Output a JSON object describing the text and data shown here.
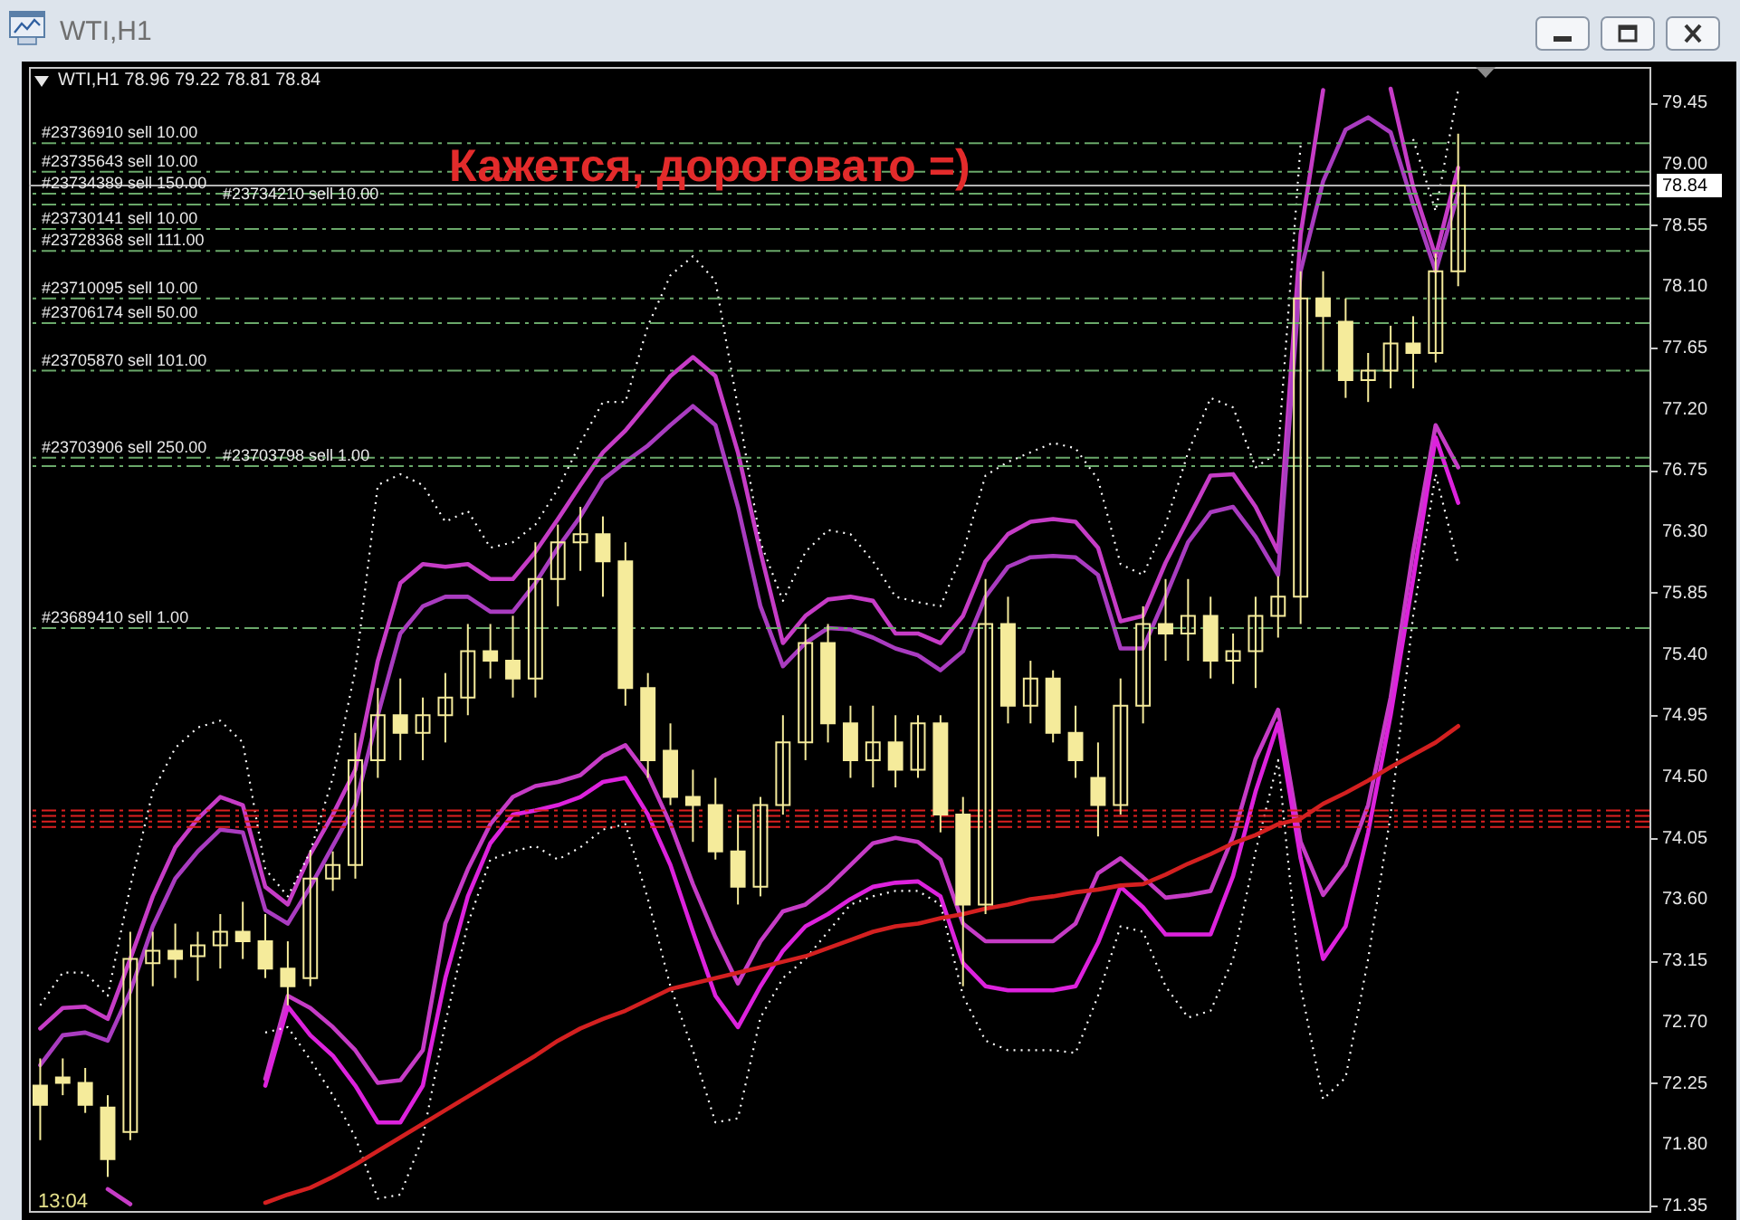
{
  "chart_data": {
    "type": "candlestick",
    "title": "WTI,H1",
    "subtitle": "WTI,H1  78.96 79.22 78.81 78.84",
    "annotations": [
      "Кажется, дороговато =)",
      "13:04"
    ],
    "categories": [
      null,
      null,
      null,
      null,
      null,
      null,
      null,
      null,
      null,
      null,
      null,
      null,
      null,
      null,
      null,
      null,
      null,
      null,
      null,
      null,
      null,
      null,
      null,
      null,
      null,
      null,
      null,
      null,
      null,
      null,
      null,
      null,
      null,
      null,
      null,
      null,
      null,
      null,
      null,
      null,
      null,
      null,
      null,
      null,
      null,
      null,
      null,
      null,
      null,
      null,
      null,
      null,
      null,
      null,
      null,
      null,
      null,
      null,
      null,
      null,
      null,
      null,
      null,
      null,
      null,
      null,
      null,
      null,
      null,
      null,
      null,
      null
    ],
    "color": "#f5eb9b",
    "ohlc": [
      [
        72.23,
        72.43,
        71.83,
        72.09
      ],
      [
        72.29,
        72.43,
        72.16,
        72.25
      ],
      [
        72.25,
        72.36,
        72.03,
        72.09
      ],
      [
        72.07,
        72.16,
        71.56,
        71.69
      ],
      [
        71.89,
        73.36,
        71.83,
        73.16
      ],
      [
        73.13,
        73.36,
        72.96,
        73.22
      ],
      [
        73.22,
        73.42,
        73.02,
        73.16
      ],
      [
        73.18,
        73.36,
        73.0,
        73.26
      ],
      [
        73.26,
        73.49,
        73.09,
        73.36
      ],
      [
        73.36,
        73.58,
        73.16,
        73.29
      ],
      [
        73.29,
        73.49,
        73.02,
        73.09
      ],
      [
        73.09,
        73.29,
        72.82,
        72.96
      ],
      [
        73.02,
        73.95,
        72.96,
        73.75
      ],
      [
        73.75,
        73.95,
        73.66,
        73.85
      ],
      [
        73.85,
        74.82,
        73.75,
        74.62
      ],
      [
        74.62,
        75.15,
        74.49,
        74.95
      ],
      [
        74.95,
        75.22,
        74.62,
        74.82
      ],
      [
        74.82,
        75.08,
        74.62,
        74.95
      ],
      [
        74.95,
        75.26,
        74.75,
        75.08
      ],
      [
        75.08,
        75.62,
        74.95,
        75.42
      ],
      [
        75.42,
        75.62,
        75.22,
        75.35
      ],
      [
        75.35,
        75.68,
        75.08,
        75.22
      ],
      [
        75.22,
        76.22,
        75.08,
        75.95
      ],
      [
        75.95,
        76.35,
        75.75,
        76.22
      ],
      [
        76.22,
        76.48,
        76.01,
        76.28
      ],
      [
        76.28,
        76.41,
        75.82,
        76.08
      ],
      [
        76.08,
        76.22,
        75.02,
        75.15
      ],
      [
        75.15,
        75.26,
        74.49,
        74.62
      ],
      [
        74.69,
        74.89,
        74.29,
        74.35
      ],
      [
        74.35,
        74.55,
        74.02,
        74.29
      ],
      [
        74.29,
        74.49,
        73.89,
        73.95
      ],
      [
        73.95,
        74.22,
        73.56,
        73.69
      ],
      [
        73.69,
        74.35,
        73.62,
        74.29
      ],
      [
        74.29,
        74.95,
        74.22,
        74.75
      ],
      [
        74.75,
        75.62,
        74.62,
        75.48
      ],
      [
        75.48,
        75.62,
        74.75,
        74.89
      ],
      [
        74.89,
        75.02,
        74.49,
        74.62
      ],
      [
        74.62,
        75.02,
        74.42,
        74.75
      ],
      [
        74.75,
        74.95,
        74.42,
        74.55
      ],
      [
        74.55,
        74.95,
        74.49,
        74.89
      ],
      [
        74.89,
        74.95,
        74.09,
        74.22
      ],
      [
        74.22,
        74.35,
        72.96,
        73.56
      ],
      [
        73.56,
        75.95,
        73.49,
        75.62
      ],
      [
        75.62,
        75.82,
        74.89,
        75.02
      ],
      [
        75.02,
        75.35,
        74.89,
        75.22
      ],
      [
        75.22,
        75.28,
        74.75,
        74.82
      ],
      [
        74.82,
        75.02,
        74.49,
        74.62
      ],
      [
        74.49,
        74.75,
        74.06,
        74.29
      ],
      [
        74.29,
        75.22,
        74.22,
        75.02
      ],
      [
        75.02,
        75.75,
        74.89,
        75.62
      ],
      [
        75.62,
        75.95,
        75.35,
        75.55
      ],
      [
        75.55,
        75.95,
        75.35,
        75.68
      ],
      [
        75.68,
        75.82,
        75.22,
        75.35
      ],
      [
        75.35,
        75.55,
        75.18,
        75.42
      ],
      [
        75.42,
        75.82,
        75.15,
        75.68
      ],
      [
        75.68,
        75.97,
        75.52,
        75.82
      ],
      [
        75.82,
        78.21,
        75.62,
        78.01
      ],
      [
        78.01,
        78.21,
        77.48,
        77.88
      ],
      [
        77.84,
        78.01,
        77.28,
        77.41
      ],
      [
        77.41,
        77.61,
        77.25,
        77.48
      ],
      [
        77.48,
        77.81,
        77.35,
        77.68
      ],
      [
        77.68,
        77.88,
        77.35,
        77.61
      ],
      [
        77.61,
        78.34,
        77.54,
        78.21
      ],
      [
        78.21,
        79.22,
        78.1,
        78.84
      ],
      null,
      null,
      null,
      null,
      null,
      null,
      null,
      null
    ],
    "series": [
      {
        "type": "line",
        "color": "#c63cc6",
        "line_style": "solid",
        "values": [
          72.65,
          72.8,
          72.81,
          72.72,
          73.16,
          73.62,
          73.98,
          74.19,
          74.35,
          74.29,
          73.69,
          73.56,
          73.93,
          74.22,
          74.55,
          75.35,
          75.92,
          76.06,
          76.04,
          76.06,
          75.95,
          75.95,
          76.15,
          76.39,
          76.64,
          76.88,
          77.04,
          77.24,
          77.44,
          77.58,
          77.44,
          76.88,
          76.15,
          75.48,
          75.68,
          75.8,
          75.82,
          75.79,
          75.55,
          75.55,
          75.48,
          75.68,
          76.08,
          76.28,
          76.37,
          76.39,
          76.37,
          76.18,
          75.64,
          75.68,
          76.07,
          76.39,
          76.71,
          76.72,
          76.48,
          76.15,
          78.48,
          79.54,
          null,
          null,
          79.55,
          78.83,
          78.32,
          78.97,
          null,
          null,
          null,
          null,
          null,
          null,
          null,
          null
        ]
      },
      {
        "type": "line",
        "color": "#a93cc0",
        "line_style": "solid",
        "values": [
          72.38,
          72.6,
          72.62,
          72.56,
          72.92,
          73.4,
          73.75,
          73.95,
          74.11,
          74.09,
          73.52,
          73.42,
          73.69,
          73.99,
          74.29,
          74.95,
          75.55,
          75.75,
          75.82,
          75.82,
          75.71,
          75.71,
          75.92,
          76.18,
          76.41,
          76.68,
          76.81,
          76.93,
          77.08,
          77.22,
          77.08,
          76.48,
          75.75,
          75.31,
          75.48,
          75.59,
          75.58,
          75.52,
          75.44,
          75.39,
          75.28,
          75.42,
          75.82,
          76.04,
          76.11,
          76.12,
          76.11,
          75.98,
          75.44,
          75.44,
          75.82,
          76.22,
          76.44,
          76.48,
          76.26,
          75.98,
          78.21,
          78.87,
          79.25,
          79.34,
          79.23,
          78.7,
          78.21,
          78.78,
          null,
          null,
          null,
          null,
          null,
          null,
          null,
          null
        ]
      },
      {
        "type": "line",
        "color": "#c63cc6",
        "line_style": "solid",
        "values": [
          null,
          null,
          null,
          71.47,
          71.36,
          null,
          null,
          null,
          null,
          null,
          72.28,
          72.89,
          72.8,
          72.66,
          72.49,
          72.25,
          72.27,
          72.49,
          73.42,
          73.82,
          74.15,
          74.35,
          74.43,
          74.46,
          74.51,
          74.65,
          74.73,
          74.51,
          74.15,
          73.71,
          73.32,
          72.98,
          73.29,
          73.51,
          73.56,
          73.69,
          73.85,
          74.01,
          74.05,
          74.02,
          73.89,
          73.42,
          73.29,
          73.29,
          73.29,
          73.29,
          73.42,
          73.79,
          73.9,
          73.76,
          73.61,
          73.63,
          73.66,
          74.06,
          74.63,
          74.99,
          74.02,
          73.63,
          73.85,
          74.29,
          75.08,
          76.15,
          77.08,
          76.77,
          null,
          null,
          null,
          null,
          null,
          null,
          null,
          null
        ]
      },
      {
        "type": "line",
        "color": "#dd22dd",
        "line_style": "solid",
        "values": [
          null,
          null,
          null,
          null,
          null,
          null,
          null,
          null,
          null,
          null,
          72.23,
          72.81,
          72.6,
          72.45,
          72.23,
          71.96,
          71.96,
          72.23,
          73.02,
          73.62,
          74.01,
          74.22,
          74.25,
          74.29,
          74.35,
          74.46,
          74.49,
          74.22,
          73.85,
          73.36,
          72.89,
          72.66,
          72.96,
          73.22,
          73.4,
          73.49,
          73.6,
          73.69,
          73.72,
          73.73,
          73.62,
          73.13,
          72.96,
          72.93,
          72.93,
          72.93,
          72.96,
          73.28,
          73.69,
          73.54,
          73.34,
          73.34,
          73.34,
          73.77,
          74.39,
          74.89,
          73.9,
          73.16,
          73.4,
          74.09,
          74.95,
          75.95,
          76.99,
          76.51,
          null,
          null,
          null,
          null,
          null,
          null,
          null,
          null
        ]
      },
      {
        "type": "line",
        "color": "#ffffff",
        "line_style": "dotted",
        "values": [
          72.82,
          73.06,
          73.06,
          72.89,
          73.69,
          74.39,
          74.71,
          74.86,
          74.91,
          74.75,
          73.82,
          73.62,
          73.95,
          74.49,
          75.28,
          76.64,
          76.72,
          76.64,
          76.37,
          76.45,
          76.18,
          76.22,
          76.35,
          76.61,
          76.95,
          77.25,
          77.25,
          77.81,
          78.18,
          78.32,
          78.14,
          77.21,
          76.22,
          75.79,
          76.15,
          76.31,
          76.28,
          76.08,
          75.82,
          75.78,
          75.75,
          76.15,
          76.71,
          76.81,
          76.88,
          76.95,
          76.91,
          76.68,
          76.06,
          75.98,
          76.35,
          76.88,
          77.28,
          77.21,
          76.77,
          76.88,
          79.14,
          null,
          null,
          null,
          null,
          79.18,
          78.65,
          79.54,
          null,
          null,
          null,
          null,
          null,
          null,
          null,
          null
        ]
      },
      {
        "type": "line",
        "color": "#ffffff",
        "line_style": "dotted",
        "values": [
          null,
          null,
          null,
          null,
          null,
          null,
          null,
          null,
          null,
          null,
          72.62,
          72.66,
          72.42,
          72.16,
          71.85,
          71.4,
          71.43,
          71.85,
          72.69,
          73.42,
          73.89,
          73.95,
          73.99,
          73.89,
          73.98,
          74.11,
          74.15,
          73.6,
          72.96,
          72.49,
          71.96,
          71.99,
          72.73,
          73.02,
          73.16,
          73.36,
          73.56,
          73.62,
          73.66,
          73.66,
          73.56,
          72.89,
          72.56,
          72.49,
          72.49,
          72.49,
          72.47,
          72.89,
          73.4,
          73.36,
          72.96,
          72.73,
          72.78,
          73.16,
          73.95,
          74.62,
          72.96,
          72.13,
          72.29,
          73.16,
          74.22,
          75.68,
          76.72,
          76.06,
          null,
          null,
          null,
          null,
          null,
          null,
          null,
          null
        ]
      },
      {
        "type": "line",
        "color": "#d42020",
        "line_style": "solid",
        "values": [
          null,
          null,
          null,
          null,
          null,
          null,
          null,
          null,
          null,
          null,
          71.37,
          71.43,
          71.48,
          71.56,
          71.65,
          71.75,
          71.85,
          71.95,
          72.05,
          72.15,
          72.25,
          72.35,
          72.45,
          72.56,
          72.65,
          72.72,
          72.78,
          72.86,
          72.94,
          72.98,
          73.02,
          73.06,
          73.1,
          73.14,
          73.18,
          73.24,
          73.3,
          73.36,
          73.4,
          73.42,
          73.46,
          73.49,
          73.53,
          73.56,
          73.6,
          73.62,
          73.65,
          73.67,
          73.7,
          73.71,
          73.78,
          73.86,
          73.93,
          74.01,
          74.07,
          74.15,
          74.19,
          74.3,
          74.38,
          74.47,
          74.57,
          74.66,
          74.75,
          74.87,
          null,
          null,
          null,
          null,
          null,
          null,
          null,
          null
        ]
      }
    ],
    "ylim": [
      71.31,
      79.71
    ],
    "yticks": [
      79.45,
      {
        "value": 79,
        "label": "79.00"
      },
      78.55,
      {
        "value": 78.1,
        "label": "78.10"
      },
      77.65,
      {
        "value": 77.2,
        "label": "77.20"
      },
      76.75,
      {
        "value": 76.3,
        "label": "76.30"
      },
      75.85,
      {
        "value": 75.4,
        "label": "75.40"
      },
      74.95,
      {
        "value": 74.5,
        "label": "74.50"
      },
      74.05,
      {
        "value": 73.6,
        "label": "73.60"
      },
      73.15,
      {
        "value": 72.7,
        "label": "72.70"
      },
      72.25,
      {
        "value": 71.8,
        "label": "71.80"
      },
      71.35
    ],
    "tick_labels": "y",
    "ref_lines": [
      {
        "axis": "y",
        "value": 79.15,
        "label": "#23736910 sell 10.00",
        "color": "#6aa86a",
        "line_style": "dashed"
      },
      {
        "axis": "y",
        "value": 78.94,
        "label": "#23735643 sell 10.00",
        "color": "#6aa86a",
        "line_style": "dashed"
      },
      {
        "axis": "y",
        "value": 78.78,
        "label": "#23734389 sell 150.00",
        "color": "#6aa86a",
        "line_style": "dashed"
      },
      {
        "axis": "y",
        "value": 78.7,
        "label": "#23734210 sell 10.00",
        "color": "#6aa86a",
        "line_style": "dashed"
      },
      {
        "axis": "y",
        "value": 78.52,
        "label": "#23730141 sell 10.00",
        "color": "#6aa86a",
        "line_style": "dashed"
      },
      {
        "axis": "y",
        "value": 78.36,
        "label": "#23728368 sell 111.00",
        "color": "#6aa86a",
        "line_style": "dashed"
      },
      {
        "axis": "y",
        "value": 78.01,
        "label": "#23710095 sell 10.00",
        "color": "#6aa86a",
        "line_style": "dashed"
      },
      {
        "axis": "y",
        "value": 77.83,
        "label": "#23706174 sell 50.00",
        "color": "#6aa86a",
        "line_style": "dashed"
      },
      {
        "axis": "y",
        "value": 77.48,
        "label": "#23705870 sell 101.00",
        "color": "#6aa86a",
        "line_style": "dashed"
      },
      {
        "axis": "y",
        "value": 76.84,
        "label": "#23703906 sell 250.00",
        "color": "#6aa86a",
        "line_style": "dashed"
      },
      {
        "axis": "y",
        "value": 76.78,
        "label": "#23703798 sell 1.00",
        "color": "#6aa86a",
        "line_style": "dashed"
      },
      {
        "axis": "y",
        "value": 75.59,
        "label": "#23689410 sell 1.00",
        "color": "#6aa86a",
        "line_style": "dashed"
      },
      {
        "axis": "y",
        "value": 74.25,
        "color": "#dd2020",
        "line_style": "dashed"
      },
      {
        "axis": "y",
        "value": 74.21,
        "color": "#dd2020",
        "line_style": "dashed"
      },
      {
        "axis": "y",
        "value": 74.17,
        "color": "#dd2020",
        "line_style": "dashed"
      },
      {
        "axis": "y",
        "value": 74.13,
        "color": "#dd2020",
        "line_style": "dashed"
      },
      {
        "axis": "y",
        "value": 78.84,
        "label": "78.84",
        "color": "#b4b4b4",
        "line_style": "solid"
      }
    ]
  }
}
